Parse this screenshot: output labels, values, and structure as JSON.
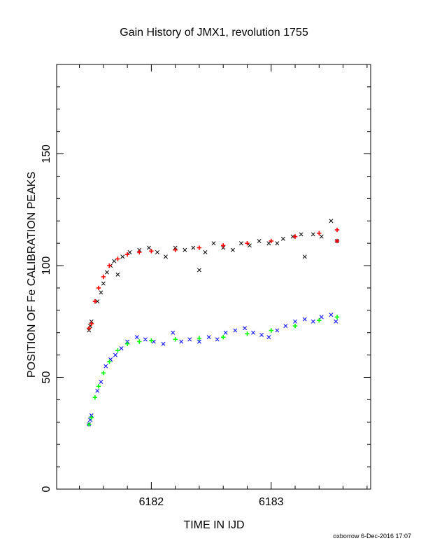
{
  "chart_data": {
    "type": "scatter",
    "title": "Gain History of JMX1, revolution 1755",
    "xlabel": "TIME IN IJD",
    "ylabel": "POSITION OF Fe CALIBRATION PEAKS",
    "xlim": [
      6181.21,
      6183.83
    ],
    "ylim": [
      0,
      190
    ],
    "x_ticks": [
      6182,
      6183
    ],
    "y_ticks": [
      0,
      50,
      100,
      150
    ],
    "grid": false,
    "legend": "none",
    "series": [
      {
        "marker": "x",
        "color": "#000000",
        "points": [
          [
            6181.48,
            71
          ],
          [
            6181.49,
            73
          ],
          [
            6181.5,
            75
          ],
          [
            6181.55,
            84
          ],
          [
            6181.58,
            88
          ],
          [
            6181.6,
            92
          ],
          [
            6181.63,
            97
          ],
          [
            6181.66,
            100
          ],
          [
            6181.69,
            102
          ],
          [
            6181.72,
            96
          ],
          [
            6181.76,
            104
          ],
          [
            6181.82,
            106
          ],
          [
            6181.9,
            107
          ],
          [
            6181.98,
            108
          ],
          [
            6182.05,
            106
          ],
          [
            6182.12,
            104
          ],
          [
            6182.2,
            108
          ],
          [
            6182.28,
            107
          ],
          [
            6182.35,
            108
          ],
          [
            6182.4,
            98
          ],
          [
            6182.45,
            106
          ],
          [
            6182.52,
            110
          ],
          [
            6182.6,
            108
          ],
          [
            6182.68,
            107
          ],
          [
            6182.75,
            110
          ],
          [
            6182.82,
            109
          ],
          [
            6182.9,
            111
          ],
          [
            6182.98,
            110
          ],
          [
            6183.05,
            110
          ],
          [
            6183.1,
            112
          ],
          [
            6183.18,
            113
          ],
          [
            6183.25,
            114
          ],
          [
            6183.28,
            104
          ],
          [
            6183.35,
            114
          ],
          [
            6183.42,
            113
          ],
          [
            6183.5,
            120
          ],
          [
            6183.55,
            111
          ]
        ]
      },
      {
        "marker": "x",
        "color": "#0000ff",
        "points": [
          [
            6181.48,
            29
          ],
          [
            6181.49,
            31
          ],
          [
            6181.5,
            33
          ],
          [
            6181.55,
            44
          ],
          [
            6181.58,
            48
          ],
          [
            6181.62,
            55
          ],
          [
            6181.66,
            58
          ],
          [
            6181.7,
            60
          ],
          [
            6181.75,
            63
          ],
          [
            6181.8,
            66
          ],
          [
            6181.88,
            68
          ],
          [
            6181.95,
            67
          ],
          [
            6182.02,
            66
          ],
          [
            6182.1,
            65
          ],
          [
            6182.18,
            70
          ],
          [
            6182.25,
            66
          ],
          [
            6182.32,
            67
          ],
          [
            6182.4,
            66
          ],
          [
            6182.48,
            68
          ],
          [
            6182.55,
            67
          ],
          [
            6182.62,
            70
          ],
          [
            6182.7,
            71
          ],
          [
            6182.78,
            72
          ],
          [
            6182.85,
            70
          ],
          [
            6182.92,
            69
          ],
          [
            6182.98,
            68
          ],
          [
            6183.05,
            71
          ],
          [
            6183.12,
            73
          ],
          [
            6183.2,
            75
          ],
          [
            6183.28,
            76
          ],
          [
            6183.35,
            75
          ],
          [
            6183.42,
            77
          ],
          [
            6183.5,
            78
          ],
          [
            6183.54,
            75
          ]
        ]
      },
      {
        "marker": "+",
        "color": "#ff0000",
        "points": [
          [
            6181.48,
            72
          ],
          [
            6181.5,
            74
          ],
          [
            6181.53,
            84
          ],
          [
            6181.56,
            90
          ],
          [
            6181.6,
            95
          ],
          [
            6181.65,
            100
          ],
          [
            6181.72,
            103
          ],
          [
            6181.8,
            105
          ],
          [
            6181.9,
            106
          ],
          [
            6182.0,
            106.5
          ],
          [
            6182.2,
            107
          ],
          [
            6182.4,
            108
          ],
          [
            6182.6,
            109
          ],
          [
            6182.8,
            110
          ],
          [
            6183.0,
            111
          ],
          [
            6183.2,
            113
          ],
          [
            6183.4,
            114.5
          ],
          [
            6183.55,
            116
          ],
          [
            6183.55,
            111
          ]
        ]
      },
      {
        "marker": "+",
        "color": "#00ff00",
        "points": [
          [
            6181.48,
            29
          ],
          [
            6181.5,
            32
          ],
          [
            6181.53,
            41
          ],
          [
            6181.56,
            46
          ],
          [
            6181.6,
            52
          ],
          [
            6181.65,
            57
          ],
          [
            6181.72,
            62
          ],
          [
            6181.8,
            65
          ],
          [
            6181.9,
            66
          ],
          [
            6182.0,
            66.5
          ],
          [
            6182.2,
            67
          ],
          [
            6182.4,
            67.5
          ],
          [
            6182.6,
            68
          ],
          [
            6182.8,
            69.5
          ],
          [
            6183.0,
            71
          ],
          [
            6183.2,
            73
          ],
          [
            6183.4,
            75.5
          ],
          [
            6183.55,
            77
          ]
        ]
      }
    ]
  },
  "footer": {
    "credit": "oxborrow  6-Dec-2016 17:07"
  }
}
